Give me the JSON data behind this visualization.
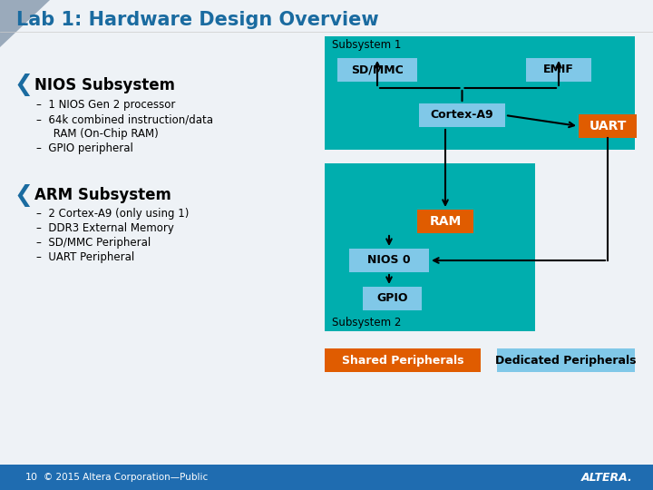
{
  "title": "Lab 1: Hardware Design Overview",
  "title_color": "#1A6BA0",
  "title_fontsize": 15,
  "white_bg": "#FFFFFF",
  "slide_bg": "#D8E4EE",
  "teal_color": "#00AEAE",
  "teal_sub2": "#00AEAE",
  "orange_color": "#E05C00",
  "blue_box_color": "#80C8E8",
  "subsys1_label": "Subsystem 1",
  "subsys2_label": "Subsystem 2",
  "bullet_color": "#1A6BA0",
  "footer_text": "© 2015 Altera Corporation—Public",
  "footer_page": "10",
  "footer_bar_color": "#1F6CB0",
  "nios_items": [
    "–  1 NIOS Gen 2 processor",
    "–  64k combined instruction/data",
    "     RAM (On-Chip RAM)",
    "–  GPIO peripheral"
  ],
  "arm_items": [
    "–  2 Cortex-A9 (only using 1)",
    "–  DDR3 External Memory",
    "–  SD/MMC Peripheral",
    "–  UART Peripheral"
  ]
}
